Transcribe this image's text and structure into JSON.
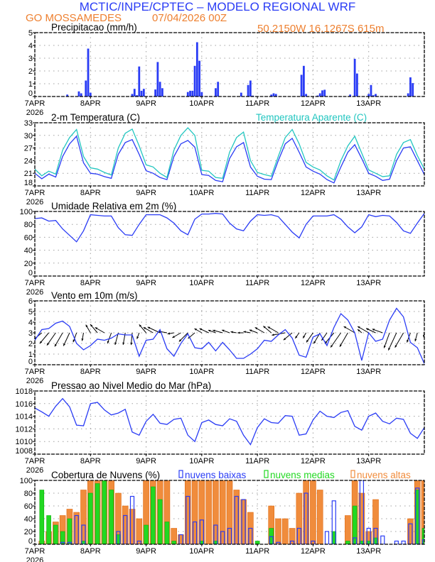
{
  "header": {
    "title": "MCTIC/INPE/CPTEC – MODELO REGIONAL WRF",
    "location": "GO MOSSAMEDES",
    "run": "07/04/2026 00Z",
    "coords": "50.2150W 16.1267S 615m"
  },
  "colors": {
    "title_blue": "#2a3cf5",
    "orange_text": "#ee8030",
    "line_blue": "#2a3cf5",
    "apparent_cyan": "#22c6c0",
    "cloud_low": "#2a3cf5",
    "cloud_mid": "#22d822",
    "cloud_high": "#f08c3c"
  },
  "x_axis": {
    "unit": "hours since 07APR2026 00Z",
    "range": [
      0,
      168
    ],
    "day_labels": [
      "7APR",
      "8APR",
      "9APR",
      "10APR",
      "11APR",
      "12APR",
      "13APR"
    ],
    "year_label": "2026"
  },
  "chart_data": [
    {
      "id": "precip",
      "type": "bar",
      "title": "Precipitacao (mm/h)",
      "ylim": [
        0,
        5
      ],
      "yticks": [
        0,
        1,
        2,
        3,
        4,
        5
      ],
      "bars": [
        [
          14,
          0.15
        ],
        [
          19,
          0.4
        ],
        [
          20,
          0.25
        ],
        [
          22,
          1.25
        ],
        [
          23,
          3.75
        ],
        [
          24,
          0.3
        ],
        [
          42,
          0.2
        ],
        [
          43,
          0.6
        ],
        [
          44,
          0.1
        ],
        [
          45,
          2.35
        ],
        [
          46,
          0.45
        ],
        [
          47,
          0.6
        ],
        [
          52,
          0.55
        ],
        [
          53,
          2.7
        ],
        [
          54,
          1.15
        ],
        [
          55,
          0.65
        ],
        [
          66,
          0.35
        ],
        [
          67,
          0.45
        ],
        [
          68,
          0.45
        ],
        [
          69,
          2.4
        ],
        [
          70,
          4.25
        ],
        [
          71,
          2.8
        ],
        [
          72,
          0.35
        ],
        [
          78,
          0.65
        ],
        [
          79,
          1.15
        ],
        [
          89,
          0.3
        ],
        [
          92,
          0.9
        ],
        [
          93,
          1.25
        ],
        [
          94,
          0.07
        ],
        [
          102,
          0.15
        ],
        [
          103,
          0.25
        ],
        [
          104,
          0.2
        ],
        [
          115,
          1.7
        ],
        [
          116,
          2.4
        ],
        [
          117,
          0.2
        ],
        [
          122,
          0.08
        ],
        [
          123,
          0.25
        ],
        [
          124,
          0.48
        ],
        [
          125,
          0.53
        ],
        [
          136,
          0.15
        ],
        [
          138,
          2.95
        ],
        [
          139,
          1.8
        ],
        [
          144,
          0.2
        ],
        [
          145,
          0.9
        ],
        [
          146,
          0.1
        ],
        [
          147,
          0.2
        ],
        [
          161,
          0.25
        ],
        [
          162,
          1.5
        ],
        [
          163,
          1.05
        ]
      ]
    },
    {
      "id": "temperature",
      "type": "line",
      "title": "2-m Temperatura (C)",
      "legend": "Temperatura Aparente (C)",
      "ylim": [
        18,
        33
      ],
      "yticks": [
        18,
        21,
        24,
        27,
        30,
        33
      ],
      "x_step_hours": 3,
      "series": [
        {
          "name": "2-m Temperatura (C)",
          "color": "#2a3cf5",
          "values": [
            21.0,
            19.7,
            20.8,
            20.1,
            25.0,
            28.0,
            29.8,
            23.5,
            21.0,
            20.8,
            20.2,
            19.8,
            25.5,
            28.3,
            29.0,
            25.5,
            21.6,
            21.0,
            20.0,
            19.5,
            25.0,
            28.0,
            28.8,
            27.2,
            20.7,
            20.5,
            19.3,
            19.0,
            24.5,
            27.3,
            28.3,
            22.5,
            20.3,
            19.6,
            19.5,
            24.0,
            28.0,
            29.3,
            26.0,
            22.5,
            21.5,
            20.8,
            19.5,
            18.7,
            22.5,
            26.0,
            27.8,
            24.5,
            21.0,
            20.3,
            19.3,
            19.6,
            24.0,
            27.0,
            27.3,
            24.0,
            20.7
          ]
        },
        {
          "name": "Temperatura Aparente (C)",
          "color": "#22c6c0",
          "values": [
            22.0,
            20.4,
            21.5,
            20.8,
            26.5,
            29.5,
            31.4,
            25.0,
            22.3,
            22.0,
            21.2,
            20.6,
            27.0,
            30.5,
            31.5,
            27.5,
            23.0,
            22.5,
            21.0,
            20.0,
            26.5,
            30.0,
            31.8,
            30.0,
            21.7,
            21.5,
            20.0,
            19.8,
            26.0,
            29.5,
            30.8,
            24.0,
            21.2,
            20.7,
            20.3,
            25.0,
            29.5,
            31.4,
            28.0,
            23.6,
            22.5,
            21.8,
            20.4,
            19.4,
            24.0,
            27.5,
            29.8,
            25.8,
            21.8,
            21.0,
            20.2,
            20.4,
            25.5,
            28.3,
            29.0,
            25.2,
            22.0
          ]
        }
      ]
    },
    {
      "id": "humidity",
      "type": "line",
      "title": "Umidade Relativa em 2m (%)",
      "ylim": [
        0,
        100
      ],
      "yticks": [
        0,
        20,
        40,
        60,
        80,
        100
      ],
      "x_step_hours": 3,
      "series": [
        {
          "name": "Umidade Relativa em 2m (%)",
          "color": "#2a3cf5",
          "values": [
            89,
            90,
            85,
            86,
            73,
            63,
            53,
            70,
            95,
            94,
            93,
            93,
            75,
            64,
            63,
            80,
            95,
            95,
            95,
            90,
            82,
            70,
            64,
            88,
            96,
            96,
            97,
            96,
            82,
            73,
            70,
            85,
            95,
            94,
            95,
            92,
            80,
            68,
            59,
            80,
            93,
            93,
            93,
            95,
            88,
            76,
            67,
            76,
            95,
            92,
            94,
            93,
            83,
            70,
            66,
            82,
            97
          ]
        }
      ]
    },
    {
      "id": "wind",
      "type": "line",
      "title": "Vento em 10m (m/s)",
      "ylim": [
        0,
        6
      ],
      "yticks": [
        0,
        1,
        2,
        3,
        4,
        5,
        6
      ],
      "x_step_hours": 3,
      "vector_baseline": 3,
      "series": [
        {
          "name": "Vento em 10m (m/s)",
          "color": "#2a3cf5",
          "values": [
            2.3,
            3.3,
            3.4,
            3.9,
            4.1,
            3.6,
            2.0,
            1.4,
            1.8,
            2.4,
            2.3,
            2.5,
            2.9,
            2.8,
            2.8,
            0.8,
            2.3,
            2.4,
            3.3,
            1.5,
            0.8,
            2.0,
            2.9,
            1.6,
            1.5,
            2.1,
            1.3,
            2.1,
            1.4,
            0.6,
            0.6,
            1.0,
            1.5,
            2.3,
            2.2,
            2.8,
            3.3,
            2.5,
            0.9,
            0.7,
            2.6,
            2.9,
            1.8,
            3.5,
            4.8,
            4.2,
            3.0,
            0.4,
            3.0,
            2.2,
            2.4,
            4.2,
            5.3,
            4.5,
            2.1,
            1.6,
            0.1
          ]
        }
      ],
      "vector_direction_toward_deg": [
        250,
        230,
        220,
        215,
        210,
        205,
        200,
        190,
        330,
        320,
        300,
        200,
        195,
        190,
        185,
        200,
        320,
        300,
        295,
        280,
        260,
        240,
        225,
        230,
        300,
        295,
        290,
        285,
        290,
        280,
        270,
        280,
        290,
        300,
        310,
        300,
        260,
        230,
        215,
        210,
        215,
        210,
        215,
        220,
        215,
        210,
        300,
        310,
        300,
        295,
        290,
        200,
        205,
        210,
        200,
        195,
        190
      ]
    },
    {
      "id": "pressure",
      "type": "line",
      "title": "Pressao ao Nivel Medio do Mar (hPa)",
      "ylim": [
        1008,
        1018
      ],
      "yticks": [
        1008,
        1010,
        1012,
        1014,
        1016,
        1018
      ],
      "x_step_hours": 3,
      "series": [
        {
          "name": "Pressao ao Nivel Medio do Mar (hPa)",
          "color": "#2a3cf5",
          "values": [
            1015.3,
            1014.7,
            1014.0,
            1015.6,
            1016.8,
            1015.5,
            1012.6,
            1012.5,
            1016.0,
            1016.2,
            1015.0,
            1014.2,
            1014.5,
            1015.1,
            1011.5,
            1011.0,
            1013.2,
            1014.3,
            1012.9,
            1012.7,
            1013.5,
            1013.7,
            1011.0,
            1010.0,
            1013.0,
            1013.4,
            1012.7,
            1012.5,
            1013.6,
            1013.2,
            1011.0,
            1009.5,
            1012.2,
            1013.6,
            1013.0,
            1012.9,
            1014.1,
            1014.0,
            1011.0,
            1011.2,
            1013.4,
            1014.8,
            1014.0,
            1013.8,
            1014.6,
            1014.9,
            1012.4,
            1011.8,
            1014.0,
            1014.5,
            1013.2,
            1012.8,
            1013.7,
            1013.5,
            1011.3,
            1010.5,
            1012.2
          ]
        }
      ]
    },
    {
      "id": "clouds",
      "type": "bar",
      "title": "Cobertura de Nuvens (%)",
      "ylim": [
        0,
        100
      ],
      "yticks": [
        0,
        20,
        40,
        60,
        80,
        100
      ],
      "x_step_hours": 3,
      "series": [
        {
          "name": "nuvens altas",
          "color": "#f08c3c",
          "values": [
            0,
            5,
            20,
            35,
            45,
            55,
            50,
            85,
            100,
            100,
            100,
            100,
            80,
            60,
            55,
            40,
            100,
            100,
            100,
            100,
            25,
            15,
            100,
            100,
            100,
            100,
            100,
            100,
            100,
            85,
            70,
            50,
            0,
            0,
            60,
            40,
            40,
            25,
            80,
            100,
            100,
            85,
            0,
            0,
            0,
            45,
            100,
            80,
            20,
            70,
            0,
            0,
            0,
            0,
            40,
            100,
            100
          ]
        },
        {
          "name": "nuvens medias",
          "color": "#22d822",
          "values": [
            0,
            85,
            45,
            30,
            20,
            40,
            0,
            5,
            80,
            95,
            100,
            85,
            15,
            0,
            0,
            0,
            30,
            90,
            70,
            35,
            5,
            0,
            0,
            0,
            5,
            0,
            5,
            0,
            0,
            0,
            0,
            0,
            5,
            0,
            25,
            0,
            0,
            0,
            0,
            0,
            0,
            0,
            0,
            20,
            0,
            5,
            60,
            5,
            5,
            10,
            0,
            0,
            0,
            0,
            0,
            85,
            25
          ]
        },
        {
          "name": "nuvens baixas",
          "color": "#2a3cf5",
          "values": [
            0,
            0,
            0,
            0,
            3,
            3,
            45,
            30,
            0,
            0,
            0,
            0,
            20,
            45,
            75,
            5,
            0,
            0,
            0,
            0,
            0,
            15,
            75,
            35,
            38,
            0,
            30,
            20,
            25,
            75,
            70,
            25,
            0,
            0,
            12,
            3,
            0,
            5,
            25,
            80,
            5,
            0,
            20,
            68,
            0,
            0,
            10,
            100,
            25,
            25,
            13,
            0,
            5,
            5,
            32,
            88,
            7
          ]
        }
      ],
      "legend": [
        "nuvens baixas",
        "nuvens medias",
        "nuvens altas"
      ]
    }
  ]
}
